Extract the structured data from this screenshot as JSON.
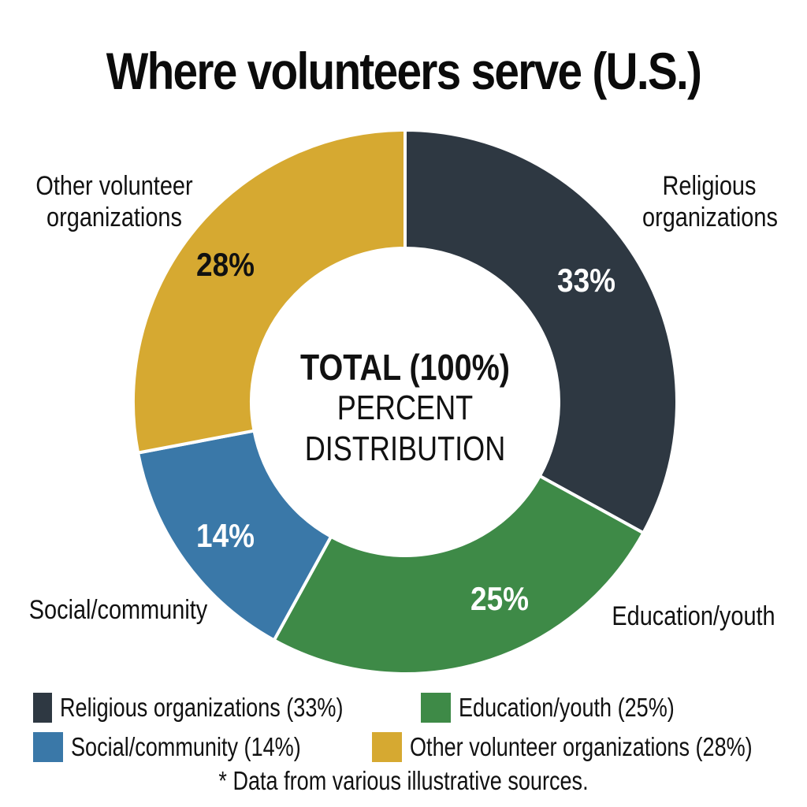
{
  "title": "Where volunteers serve (U.S.)",
  "center": {
    "line1": "TOTAL (100%)",
    "line2": "PERCENT",
    "line3": "DISTRIBUTION"
  },
  "segments": [
    {
      "name": "Religious organizations",
      "value": 33,
      "label": "33%",
      "color": "#2e3842",
      "label_color": "#ffffff",
      "ext_label_lines": [
        "Religious",
        "organizations"
      ]
    },
    {
      "name": "Education/youth",
      "value": 25,
      "label": "25%",
      "color": "#3e8a47",
      "label_color": "#ffffff",
      "ext_label_lines": [
        "Education/youth"
      ]
    },
    {
      "name": "Social/community",
      "value": 14,
      "label": "14%",
      "color": "#3a78a8",
      "label_color": "#ffffff",
      "ext_label_lines": [
        "Social/community"
      ]
    },
    {
      "name": "Other volunteer organizations",
      "value": 28,
      "label": "28%",
      "color": "#d6a931",
      "label_color": "#111111",
      "ext_label_lines": [
        "Other volunteer",
        "organizations"
      ]
    }
  ],
  "legend": [
    {
      "text": "Religious organizations (33%)",
      "color": "#2e3842"
    },
    {
      "text": "Education/youth (25%)",
      "color": "#3e8a47"
    },
    {
      "text": "Social/community (14%)",
      "color": "#3a78a8"
    },
    {
      "text": "Other volunteer organizations (28%)",
      "color": "#d6a931"
    }
  ],
  "note": "* Data from various illustrative sources.",
  "chart_data": {
    "type": "pie",
    "variant": "donut",
    "title": "Where volunteers serve (U.S.)",
    "center_text": "TOTAL (100%) PERCENT DISTRIBUTION",
    "categories": [
      "Religious organizations",
      "Education/youth",
      "Social/community",
      "Other volunteer organizations"
    ],
    "values": [
      33,
      25,
      14,
      28
    ],
    "unit": "%",
    "colors": [
      "#2e3842",
      "#3e8a47",
      "#3a78a8",
      "#d6a931"
    ],
    "start_angle": "12 o'clock, clockwise",
    "legend_position": "bottom",
    "footnote": "* Data from various illustrative sources."
  }
}
